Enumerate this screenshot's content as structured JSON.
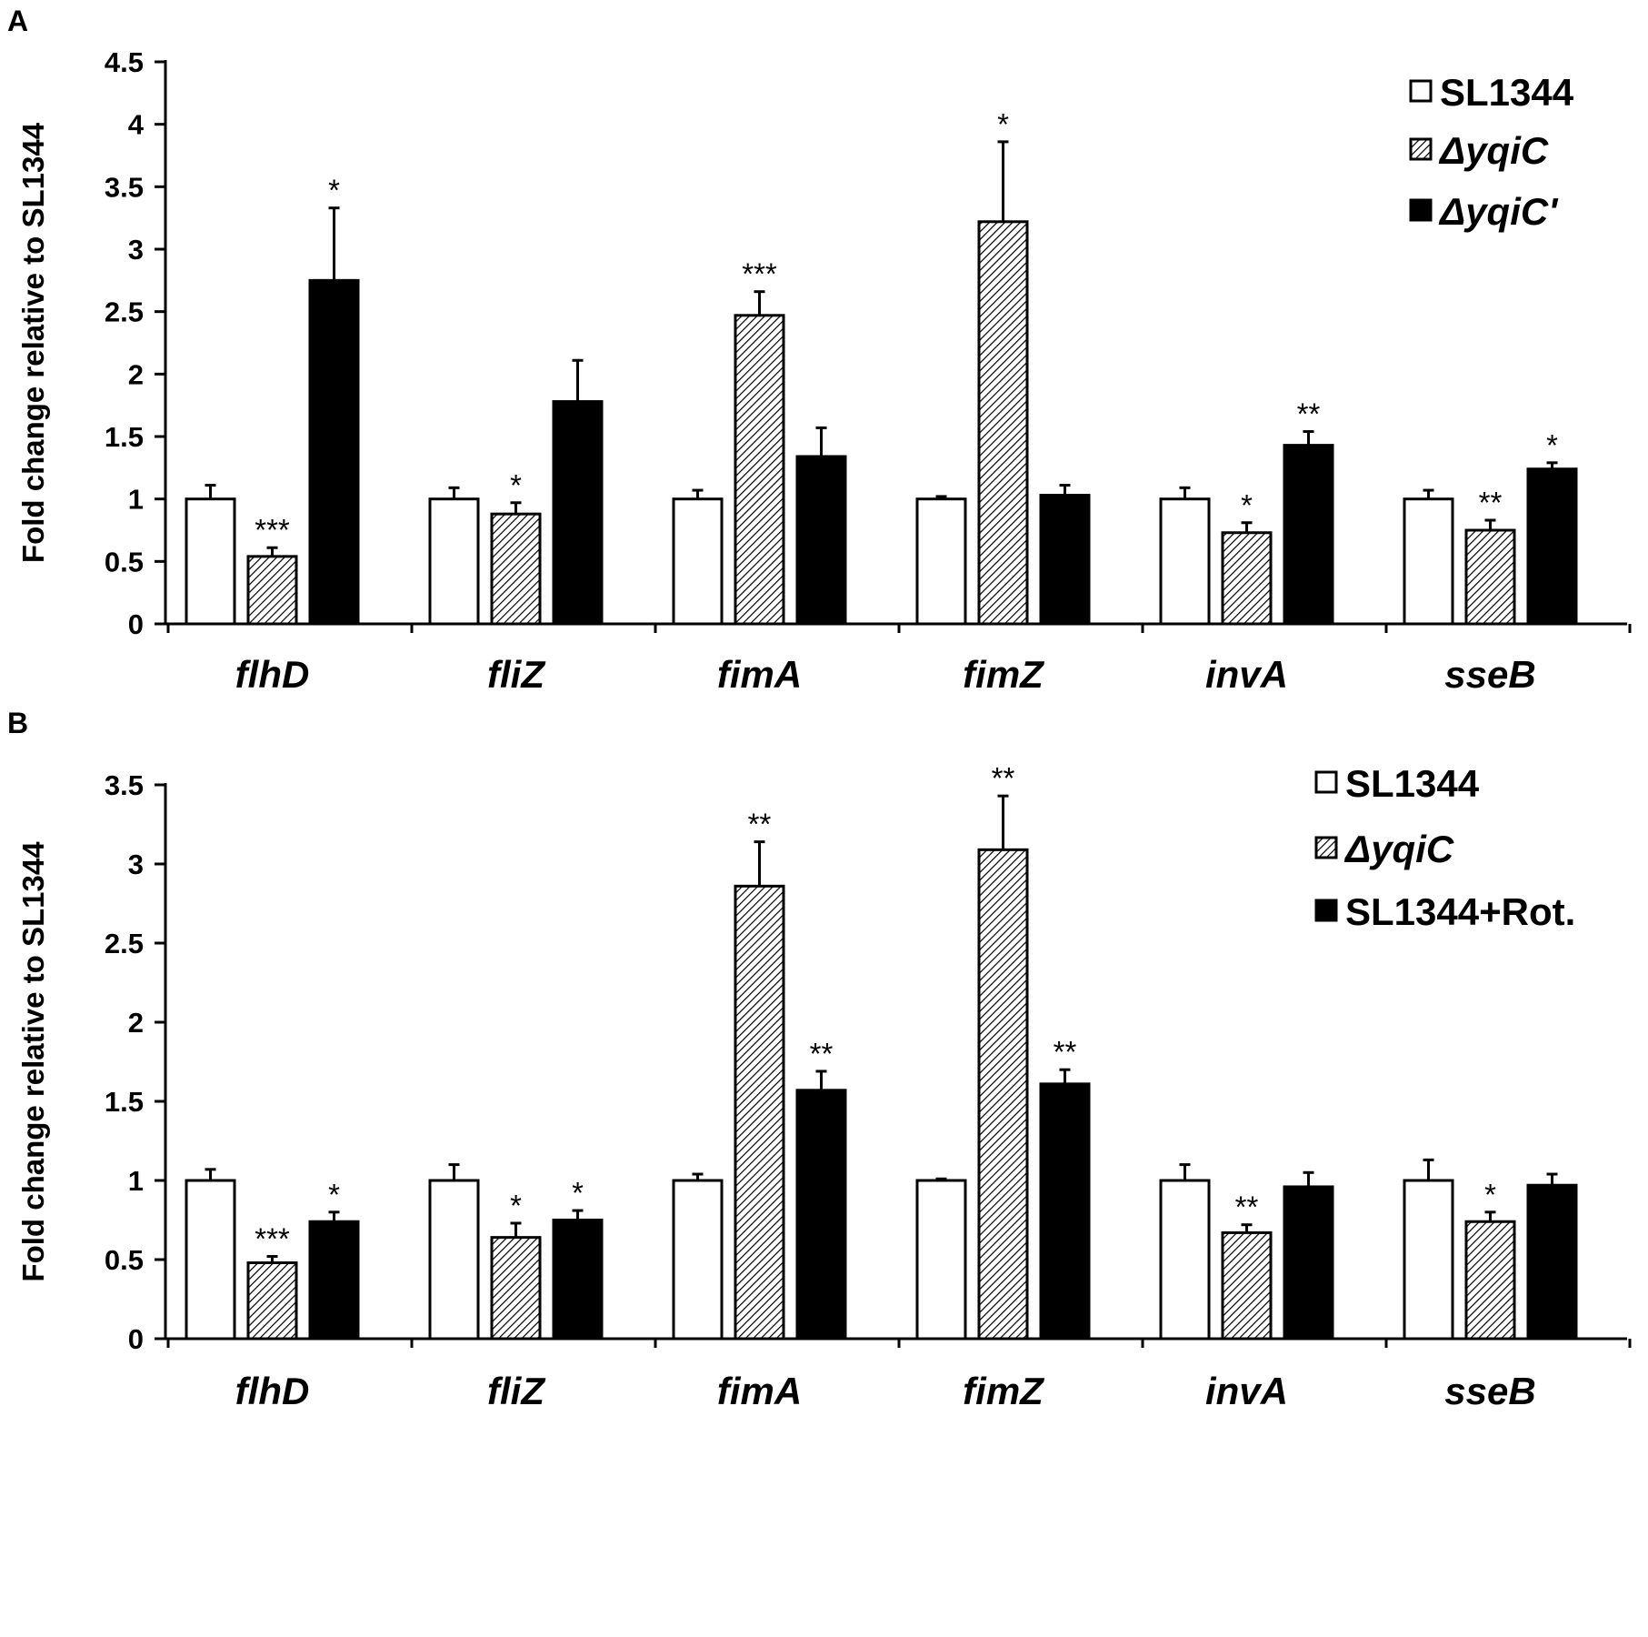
{
  "chart_data": [
    {
      "panel": "A",
      "type": "bar",
      "ylabel": "Fold change relative to SL1344",
      "ylim": [
        0,
        4.5
      ],
      "yticks": [
        "0",
        "0.5",
        "1",
        "1.5",
        "2",
        "2.5",
        "3",
        "3.5",
        "4",
        "4.5"
      ],
      "ytick_values": [
        0,
        0.5,
        1,
        1.5,
        2,
        2.5,
        3,
        3.5,
        4,
        4.5
      ],
      "categories": [
        "flhD",
        "fliZ",
        "fimA",
        "fimZ",
        "invA",
        "sseB"
      ],
      "legend_position": "top-right",
      "series": [
        {
          "name": "SL1344",
          "italic": false,
          "style": "white",
          "values": [
            1.0,
            1.0,
            1.0,
            1.0,
            1.0,
            1.0
          ],
          "errors": [
            0.11,
            0.09,
            0.07,
            0.02,
            0.09,
            0.07
          ],
          "sig": [
            "",
            "",
            "",
            "",
            "",
            ""
          ]
        },
        {
          "name": "ΔyqiC",
          "italic": true,
          "style": "hatched",
          "values": [
            0.54,
            0.88,
            2.47,
            3.22,
            0.73,
            0.75
          ],
          "errors": [
            0.07,
            0.09,
            0.19,
            0.64,
            0.08,
            0.08
          ],
          "sig": [
            "***",
            "*",
            "***",
            "*",
            "*",
            "**"
          ]
        },
        {
          "name": "ΔyqiC'",
          "italic": true,
          "style": "black",
          "values": [
            2.75,
            1.78,
            1.34,
            1.03,
            1.43,
            1.24
          ],
          "errors": [
            0.58,
            0.33,
            0.23,
            0.08,
            0.11,
            0.05
          ],
          "sig": [
            "*",
            "",
            "",
            "",
            "**",
            "*"
          ]
        }
      ]
    },
    {
      "panel": "B",
      "type": "bar",
      "ylabel": "Fold change relative to SL1344",
      "ylim": [
        0,
        3.5
      ],
      "yticks": [
        "0",
        "0.5",
        "1",
        "1.5",
        "2",
        "2.5",
        "3",
        "3.5"
      ],
      "ytick_values": [
        0,
        0.5,
        1,
        1.5,
        2,
        2.5,
        3,
        3.5
      ],
      "categories": [
        "flhD",
        "fliZ",
        "fimA",
        "fimZ",
        "invA",
        "sseB"
      ],
      "legend_position": "top-right",
      "series": [
        {
          "name": "SL1344",
          "italic": false,
          "style": "white",
          "values": [
            1.0,
            1.0,
            1.0,
            1.0,
            1.0,
            1.0
          ],
          "errors": [
            0.07,
            0.1,
            0.04,
            0.01,
            0.1,
            0.13
          ],
          "sig": [
            "",
            "",
            "",
            "",
            "",
            ""
          ]
        },
        {
          "name": "ΔyqiC",
          "italic": true,
          "style": "hatched",
          "values": [
            0.48,
            0.64,
            2.86,
            3.09,
            0.67,
            0.74
          ],
          "errors": [
            0.04,
            0.09,
            0.28,
            0.34,
            0.05,
            0.06
          ],
          "sig": [
            "***",
            "*",
            "**",
            "**",
            "**",
            "*"
          ]
        },
        {
          "name": "SL1344+Rot.",
          "italic": false,
          "style": "black",
          "values": [
            0.74,
            0.75,
            1.57,
            1.61,
            0.96,
            0.97
          ],
          "errors": [
            0.06,
            0.06,
            0.12,
            0.09,
            0.09,
            0.07
          ],
          "sig": [
            "*",
            "*",
            "**",
            "**",
            "",
            ""
          ]
        }
      ]
    }
  ]
}
